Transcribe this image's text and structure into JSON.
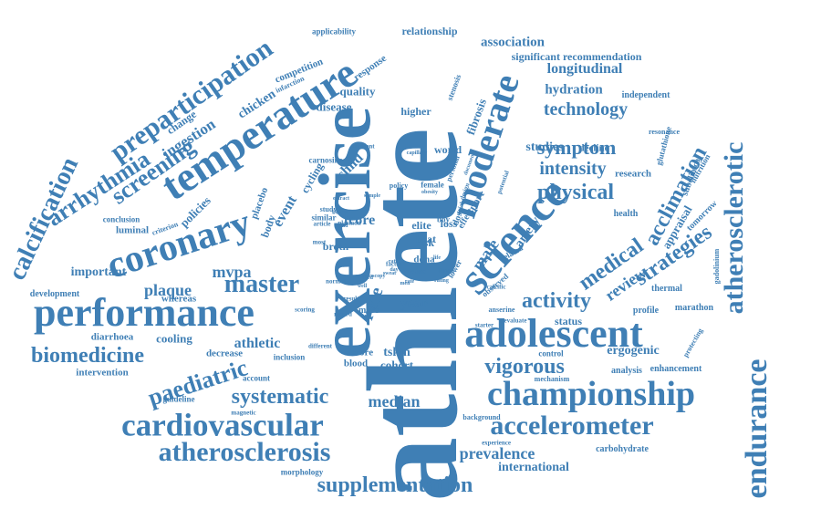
{
  "word_cloud": {
    "color": "#3f7fb5",
    "words": [
      "athlete",
      "exercise",
      "performance",
      "coronary",
      "temperature",
      "science",
      "moderate",
      "adolescent",
      "championship",
      "cardiovascular",
      "atherosclerosis",
      "accelerometer",
      "endurance",
      "atherosclerotic",
      "supplementation",
      "preparticipation",
      "arrhythmia",
      "screening",
      "calcification",
      "biomedicine",
      "paediatric",
      "systematic",
      "master",
      "physical",
      "vigorous",
      "intensity",
      "symptom",
      "technology",
      "longitudinal",
      "hydration",
      "association",
      "significant recommendation",
      "relationship",
      "applicability",
      "competition",
      "ingestion",
      "chicken",
      "response",
      "quality",
      "disease",
      "fibrosis",
      "higher",
      "stenosis",
      "world",
      "studies",
      "decline",
      "research",
      "independent",
      "acclimation",
      "strategies",
      "medical",
      "activity",
      "review",
      "artery",
      "male",
      "race",
      "risk",
      "heat",
      "doha",
      "tcore",
      "year",
      "child",
      "event",
      "policies",
      "change",
      "mvpa",
      "plaque",
      "important",
      "development",
      "diarrhoea",
      "cooling",
      "athletic",
      "decrease",
      "intervention",
      "guideline",
      "account",
      "score",
      "tskin",
      "blood",
      "cohort",
      "median",
      "prevalence",
      "international",
      "carbohydrate",
      "ergogenic",
      "analysis",
      "enhancement",
      "mechanism",
      "control",
      "status",
      "evaluate",
      "profile",
      "marathon",
      "thermal",
      "protecting",
      "appraisal",
      "tomorrow",
      "subclinical",
      "health",
      "gadolinium",
      "glutathione",
      "background",
      "experience",
      "morphology",
      "magnetic",
      "whereas",
      "inclusion",
      "different",
      "scoring",
      "anserine",
      "elite",
      "loss",
      "study",
      "policy",
      "female",
      "obesity",
      "capillary",
      "gradient",
      "carnosine",
      "cycling",
      "infarction",
      "placebo",
      "body",
      "luminal",
      "criterion",
      "conclusion",
      "sport",
      "sample",
      "gold",
      "personal",
      "nutrition",
      "resonance",
      "calcific",
      "observed",
      "related",
      "starter",
      "potential",
      "trial",
      "dose",
      "lower",
      "effect",
      "boy",
      "design",
      "document",
      "extract",
      "plasmon",
      "similar",
      "better",
      "article",
      "broth",
      "result",
      "more",
      "normal",
      "rate",
      "water",
      "spectroscopy",
      "aged",
      "fitness",
      "sweat",
      "rating",
      "day",
      "life",
      "use",
      "men",
      "factor",
      "most",
      "record",
      "ratio",
      "well"
    ]
  }
}
